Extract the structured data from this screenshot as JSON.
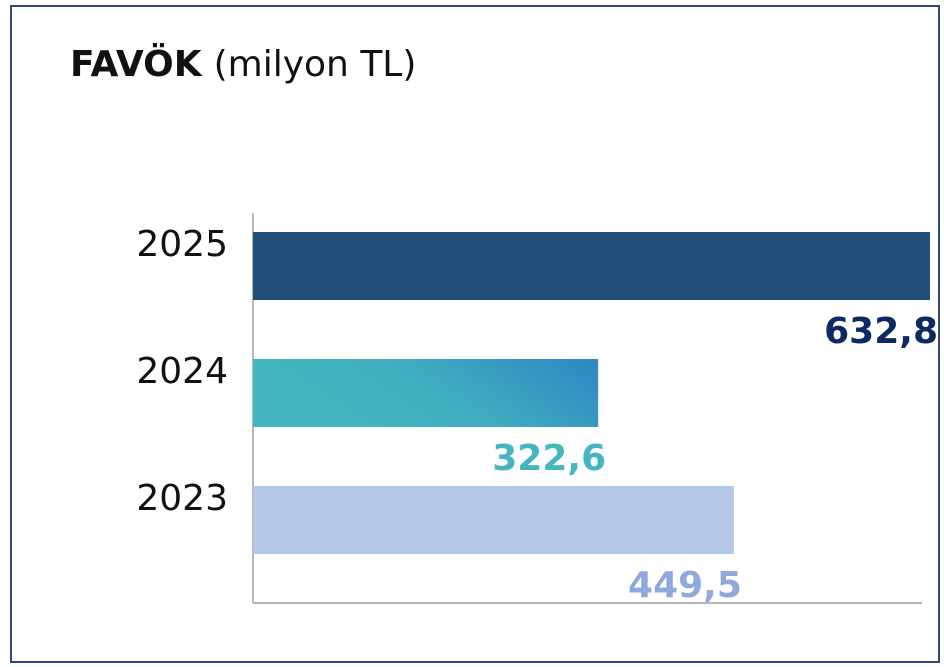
{
  "chart_data": {
    "type": "bar",
    "orientation": "horizontal",
    "title": "FAVÖK",
    "subtitle": "(milyon TL)",
    "categories": [
      "2025",
      "2024",
      "2023"
    ],
    "values": [
      632.8,
      322.6,
      449.5
    ],
    "value_labels": [
      "632,8",
      "322,6",
      "449,5"
    ],
    "colors": [
      "#214f7a",
      "#2f86c2",
      "#b4c7e7"
    ],
    "label_colors": [
      "#0d2a63",
      "#45b6bf",
      "#8fa9dc"
    ],
    "xlim": [
      0,
      632.8
    ]
  }
}
